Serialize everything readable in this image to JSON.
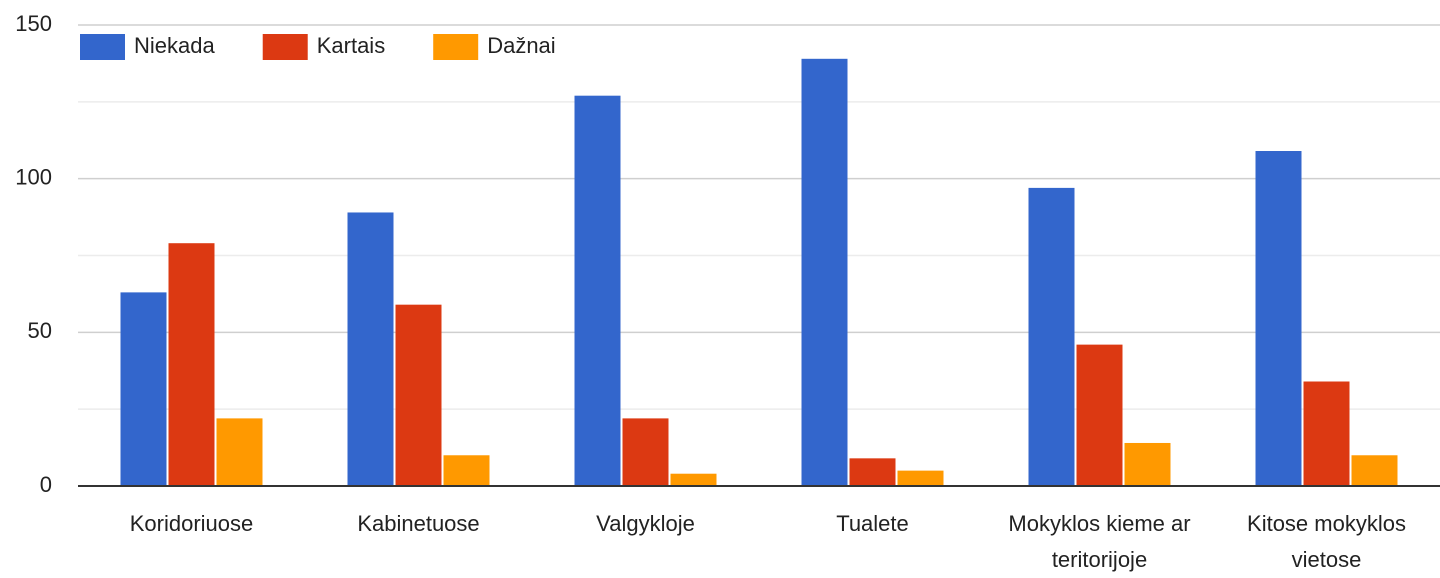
{
  "chart_data": {
    "type": "bar",
    "categories": [
      "Koridoriuose",
      "Kabinetuose",
      "Valgykloje",
      "Tualete",
      "Mokyklos kieme ar teritorijoje",
      "Kitose mokyklos vietose"
    ],
    "series": [
      {
        "name": "Niekada",
        "color": "#3366cc",
        "values": [
          63,
          89,
          127,
          139,
          97,
          109
        ]
      },
      {
        "name": "Kartais",
        "color": "#dc3912",
        "values": [
          79,
          59,
          22,
          9,
          46,
          34
        ]
      },
      {
        "name": "Dažnai",
        "color": "#ff9900",
        "values": [
          22,
          10,
          4,
          5,
          14,
          10
        ]
      }
    ],
    "ylim": [
      0,
      150
    ],
    "yticks": [
      0,
      50,
      100,
      150
    ],
    "minor_yticks": [
      25,
      75,
      125
    ],
    "grid": true,
    "legend": "top-left"
  }
}
